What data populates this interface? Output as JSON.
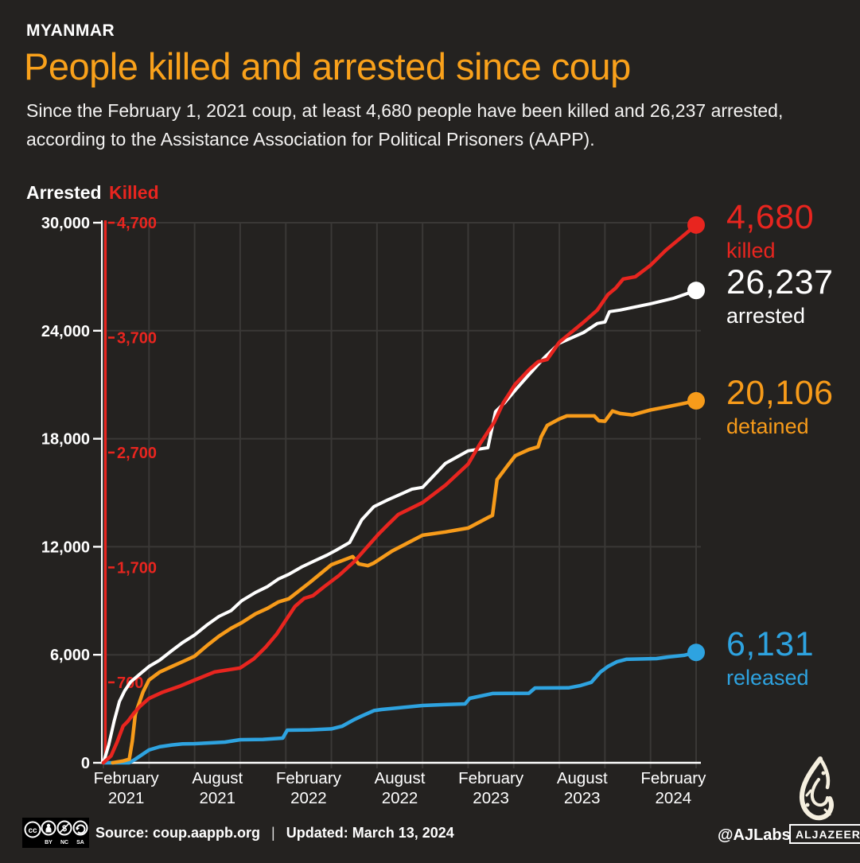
{
  "header": {
    "kicker": "MYANMAR",
    "title": "People killed and arrested since coup",
    "subtitle": "Since the February 1, 2021 coup, at least 4,680 people have been killed and 26,237 arrested, according to the Assistance Association for Political Prisoners (AAPP)."
  },
  "colors": {
    "background": "#242220",
    "grid": "#3a3836",
    "axis_white": "#ffffff",
    "killed": "#e8251f",
    "arrested": "#ffffff",
    "detained": "#f79b1a",
    "released": "#2ea3e0"
  },
  "chart_data": {
    "type": "line",
    "title": "People killed and arrested since coup",
    "grid": true,
    "x_axis": {
      "start": "February 2021",
      "end": "March 13, 2024",
      "months_span": 39,
      "gridline_every_months": 3,
      "tick_label_months": [
        1.5,
        7.5,
        13.5,
        19.5,
        25.5,
        31.5,
        37.5
      ],
      "tick_labels": [
        [
          "February",
          "2021"
        ],
        [
          "August",
          "2021"
        ],
        [
          "February",
          "2022"
        ],
        [
          "August",
          "2022"
        ],
        [
          "February",
          "2023"
        ],
        [
          "August",
          "2023"
        ],
        [
          "February",
          "2024"
        ]
      ]
    },
    "left_axis": {
      "label": "Arrested",
      "min": 0,
      "max": 30000,
      "ticks": [
        0,
        6000,
        12000,
        18000,
        24000,
        30000
      ],
      "tick_labels": [
        "0",
        "6,000",
        "12,000",
        "18,000",
        "24,000",
        "30,000"
      ]
    },
    "killed_axis": {
      "label": "Killed",
      "min": 0,
      "max": 4700,
      "ticks": [
        700,
        1700,
        2700,
        3700,
        4700
      ],
      "tick_labels": [
        "700",
        "1,700",
        "2,700",
        "3,700",
        "4,700"
      ]
    },
    "series": [
      {
        "id": "released",
        "axis": "arrested",
        "color_key": "released",
        "end_value": 6131,
        "end_label": "6,131",
        "end_sublabel": "released",
        "points": [
          [
            0,
            0
          ],
          [
            1.7,
            0
          ],
          [
            2.1,
            200
          ],
          [
            3,
            710
          ],
          [
            3.7,
            890
          ],
          [
            4.5,
            990
          ],
          [
            5.2,
            1050
          ],
          [
            6,
            1060
          ],
          [
            6.9,
            1100
          ],
          [
            8,
            1150
          ],
          [
            9,
            1280
          ],
          [
            10.5,
            1300
          ],
          [
            11.8,
            1370
          ],
          [
            12.1,
            1810
          ],
          [
            13.6,
            1830
          ],
          [
            15,
            1880
          ],
          [
            15.7,
            2030
          ],
          [
            16.5,
            2400
          ],
          [
            17,
            2600
          ],
          [
            17.8,
            2900
          ],
          [
            18.3,
            2960
          ],
          [
            19.4,
            3050
          ],
          [
            21,
            3180
          ],
          [
            22.4,
            3230
          ],
          [
            23.8,
            3270
          ],
          [
            24.1,
            3580
          ],
          [
            25.6,
            3850
          ],
          [
            28,
            3860
          ],
          [
            28.4,
            4155
          ],
          [
            30.6,
            4160
          ],
          [
            31.4,
            4290
          ],
          [
            32.1,
            4465
          ],
          [
            32.7,
            5040
          ],
          [
            33.2,
            5350
          ],
          [
            33.8,
            5615
          ],
          [
            34.4,
            5750
          ],
          [
            36.4,
            5790
          ],
          [
            37.2,
            5880
          ],
          [
            38.2,
            5970
          ],
          [
            39,
            6131
          ]
        ]
      },
      {
        "id": "arrested",
        "axis": "arrested",
        "color_key": "arrested",
        "end_value": 26237,
        "end_label": "26,237",
        "end_sublabel": "arrested",
        "points": [
          [
            0,
            0
          ],
          [
            0.35,
            1000
          ],
          [
            0.7,
            2300
          ],
          [
            1.05,
            3400
          ],
          [
            1.4,
            4000
          ],
          [
            1.8,
            4500
          ],
          [
            2.5,
            5000
          ],
          [
            3,
            5350
          ],
          [
            3.7,
            5700
          ],
          [
            4.5,
            6230
          ],
          [
            5.2,
            6670
          ],
          [
            6,
            7100
          ],
          [
            6.8,
            7650
          ],
          [
            7.6,
            8130
          ],
          [
            8.4,
            8450
          ],
          [
            9.1,
            9000
          ],
          [
            10,
            9460
          ],
          [
            10.8,
            9790
          ],
          [
            11.5,
            10200
          ],
          [
            12.2,
            10470
          ],
          [
            13.1,
            10900
          ],
          [
            13.9,
            11220
          ],
          [
            14.7,
            11530
          ],
          [
            15.3,
            11800
          ],
          [
            16.2,
            12240
          ],
          [
            17,
            13500
          ],
          [
            17.8,
            14230
          ],
          [
            18.7,
            14600
          ],
          [
            20.3,
            15200
          ],
          [
            21,
            15300
          ],
          [
            22.5,
            16630
          ],
          [
            24,
            17330
          ],
          [
            25.3,
            17500
          ],
          [
            25.8,
            19500
          ],
          [
            26.4,
            20000
          ],
          [
            27.1,
            20700
          ],
          [
            28,
            21560
          ],
          [
            29,
            22500
          ],
          [
            30,
            23300
          ],
          [
            31.6,
            23900
          ],
          [
            32.5,
            24400
          ],
          [
            33,
            24480
          ],
          [
            33.3,
            25060
          ],
          [
            34,
            25150
          ],
          [
            36,
            25500
          ],
          [
            37.5,
            25800
          ],
          [
            39,
            26237
          ]
        ]
      },
      {
        "id": "detained",
        "axis": "arrested",
        "color_key": "detained",
        "end_value": 20106,
        "end_label": "20,106",
        "end_sublabel": "detained",
        "points": [
          [
            0.6,
            0
          ],
          [
            1.3,
            100
          ],
          [
            1.7,
            200
          ],
          [
            1.9,
            1200
          ],
          [
            2.1,
            2700
          ],
          [
            2.6,
            3930
          ],
          [
            3,
            4600
          ],
          [
            3.7,
            5040
          ],
          [
            4.5,
            5350
          ],
          [
            5.2,
            5610
          ],
          [
            6,
            5920
          ],
          [
            6.8,
            6500
          ],
          [
            7.6,
            7030
          ],
          [
            8.4,
            7470
          ],
          [
            9.1,
            7780
          ],
          [
            10,
            8270
          ],
          [
            10.8,
            8580
          ],
          [
            11.5,
            8930
          ],
          [
            12.2,
            9110
          ],
          [
            13.6,
            10030
          ],
          [
            15,
            11000
          ],
          [
            16.4,
            11450
          ],
          [
            16.8,
            11050
          ],
          [
            17.4,
            10950
          ],
          [
            17.8,
            11100
          ],
          [
            19,
            11760
          ],
          [
            21,
            12640
          ],
          [
            22.5,
            12820
          ],
          [
            24,
            13040
          ],
          [
            25.4,
            13660
          ],
          [
            25.6,
            13740
          ],
          [
            25.9,
            15730
          ],
          [
            26.5,
            16400
          ],
          [
            27.1,
            17060
          ],
          [
            28,
            17400
          ],
          [
            28.6,
            17550
          ],
          [
            28.8,
            18100
          ],
          [
            29.2,
            18740
          ],
          [
            30,
            19100
          ],
          [
            30.5,
            19270
          ],
          [
            32.3,
            19270
          ],
          [
            32.6,
            19000
          ],
          [
            33,
            18970
          ],
          [
            33.5,
            19540
          ],
          [
            34,
            19400
          ],
          [
            34.8,
            19320
          ],
          [
            36,
            19600
          ],
          [
            37,
            19760
          ],
          [
            38,
            19930
          ],
          [
            39,
            20106
          ]
        ]
      },
      {
        "id": "killed",
        "axis": "killed",
        "color_key": "killed",
        "end_value": 4680,
        "end_label": "4,680",
        "end_sublabel": "killed",
        "points": [
          [
            0,
            0
          ],
          [
            0.5,
            60
          ],
          [
            0.9,
            180
          ],
          [
            1.3,
            320
          ],
          [
            1.6,
            360
          ],
          [
            2,
            430
          ],
          [
            2.4,
            490
          ],
          [
            3,
            560
          ],
          [
            3.9,
            615
          ],
          [
            5,
            665
          ],
          [
            6,
            720
          ],
          [
            7.3,
            790
          ],
          [
            9,
            825
          ],
          [
            9.9,
            905
          ],
          [
            10.7,
            1010
          ],
          [
            11.4,
            1120
          ],
          [
            12,
            1240
          ],
          [
            12.6,
            1360
          ],
          [
            13.2,
            1430
          ],
          [
            13.8,
            1455
          ],
          [
            14.5,
            1530
          ],
          [
            15.5,
            1630
          ],
          [
            16.5,
            1750
          ],
          [
            17.5,
            1900
          ],
          [
            18.1,
            1990
          ],
          [
            18.7,
            2070
          ],
          [
            19.4,
            2160
          ],
          [
            21,
            2265
          ],
          [
            22.5,
            2415
          ],
          [
            24,
            2600
          ],
          [
            24.8,
            2780
          ],
          [
            25.7,
            2960
          ],
          [
            26.3,
            3130
          ],
          [
            27.1,
            3295
          ],
          [
            28,
            3420
          ],
          [
            28.6,
            3490
          ],
          [
            29.2,
            3510
          ],
          [
            30,
            3660
          ],
          [
            31.6,
            3835
          ],
          [
            32.5,
            3940
          ],
          [
            33.2,
            4075
          ],
          [
            33.7,
            4130
          ],
          [
            34.2,
            4210
          ],
          [
            35,
            4230
          ],
          [
            36,
            4330
          ],
          [
            37,
            4460
          ],
          [
            38,
            4570
          ],
          [
            39,
            4680
          ]
        ]
      }
    ]
  },
  "footer": {
    "license_parts": [
      "BY",
      "NC",
      "SA"
    ],
    "source": "Source: coup.aappb.org",
    "separator": "|",
    "updated": "Updated: March 13, 2024",
    "credit": "@AJLabs",
    "brand": "ALJAZEERA"
  }
}
